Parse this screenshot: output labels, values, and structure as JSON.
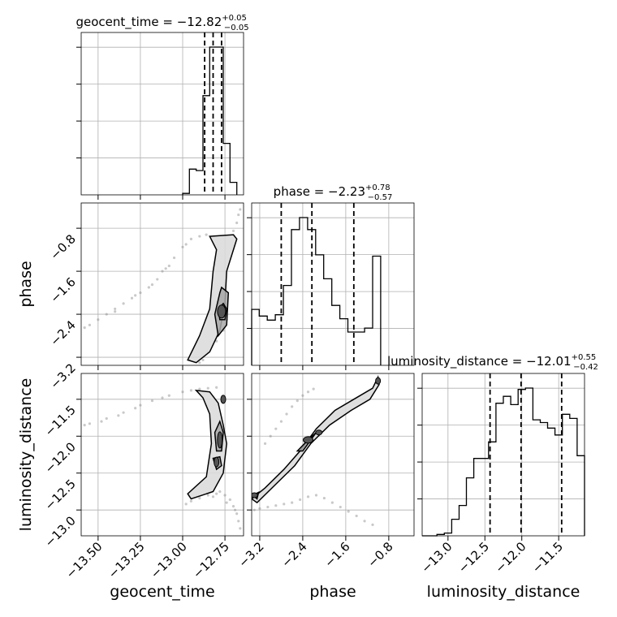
{
  "chart_data": {
    "type": "corner",
    "parameters": [
      "geocent_time",
      "phase",
      "luminosity_distance"
    ],
    "xlabels": [
      "geocent_time",
      "phase",
      "luminosity_distance"
    ],
    "ylabels": [
      "phase",
      "luminosity_distance"
    ],
    "titles": [
      {
        "name": "geocent_time",
        "median": "−12.82",
        "plus": "+0.05",
        "minus": "−0.05"
      },
      {
        "name": "phase",
        "median": "−2.23",
        "plus": "+0.78",
        "minus": "−0.57"
      },
      {
        "name": "luminosity_distance",
        "median": "−12.01",
        "plus": "+0.55",
        "minus": "−0.42"
      }
    ],
    "ranges": {
      "geocent_time": [
        -13.6,
        -12.64
      ],
      "phase": [
        -3.35,
        -0.33
      ],
      "luminosity_distance": [
        -13.35,
        -11.15
      ]
    },
    "ticks": {
      "geocent_time": {
        "values": [
          -13.5,
          -13.25,
          -13.0,
          -12.75
        ],
        "labels": [
          "−13.50",
          "−13.25",
          "−13.00",
          "−12.75"
        ]
      },
      "phase": {
        "values": [
          -3.2,
          -2.4,
          -1.6,
          -0.8
        ],
        "labels": [
          "−3.2",
          "−2.4",
          "−1.6",
          "−0.8"
        ]
      },
      "luminosity_distance": {
        "values": [
          -13.0,
          -12.5,
          -12.0,
          -11.5
        ],
        "labels": [
          "−13.0",
          "−12.5",
          "−12.0",
          "−11.5"
        ]
      }
    },
    "histograms": {
      "geocent_time": {
        "edges": [
          -13.0,
          -12.96,
          -12.92,
          -12.88,
          -12.84,
          -12.8,
          -12.76,
          -12.72,
          -12.68
        ],
        "counts": [
          2,
          35,
          33,
          135,
          201,
          201,
          70,
          17
        ],
        "quantiles": [
          -12.87,
          -12.82,
          -12.77
        ]
      },
      "phase": {
        "edges": [
          -3.35,
          -3.21,
          -3.06,
          -2.91,
          -2.76,
          -2.61,
          -2.46,
          -2.31,
          -2.16,
          -2.01,
          -1.86,
          -1.71,
          -1.56,
          -1.4,
          -1.25,
          -1.1,
          -0.95
        ],
        "counts": [
          42,
          37,
          34,
          38,
          60,
          102,
          111,
          102,
          83,
          65,
          45,
          35,
          25,
          25,
          28,
          82
        ],
        "quantiles": [
          -2.8,
          -2.23,
          -1.45
        ]
      },
      "luminosity_distance": {
        "edges": [
          -13.35,
          -13.25,
          -13.15,
          -13.05,
          -12.95,
          -12.85,
          -12.75,
          -12.65,
          -12.55,
          -12.45,
          -12.35,
          -12.25,
          -12.15,
          -12.05,
          -11.95,
          -11.85,
          -11.75,
          -11.65,
          -11.55,
          -11.45,
          -11.35,
          -11.25,
          -11.15
        ],
        "counts": [
          0,
          0,
          1,
          2,
          12,
          22,
          42,
          56,
          56,
          68,
          96,
          101,
          95,
          106,
          107,
          84,
          82,
          78,
          73,
          88,
          85,
          58
        ],
        "quantiles": [
          -12.43,
          -12.01,
          -11.46
        ]
      }
    },
    "grid": true
  }
}
